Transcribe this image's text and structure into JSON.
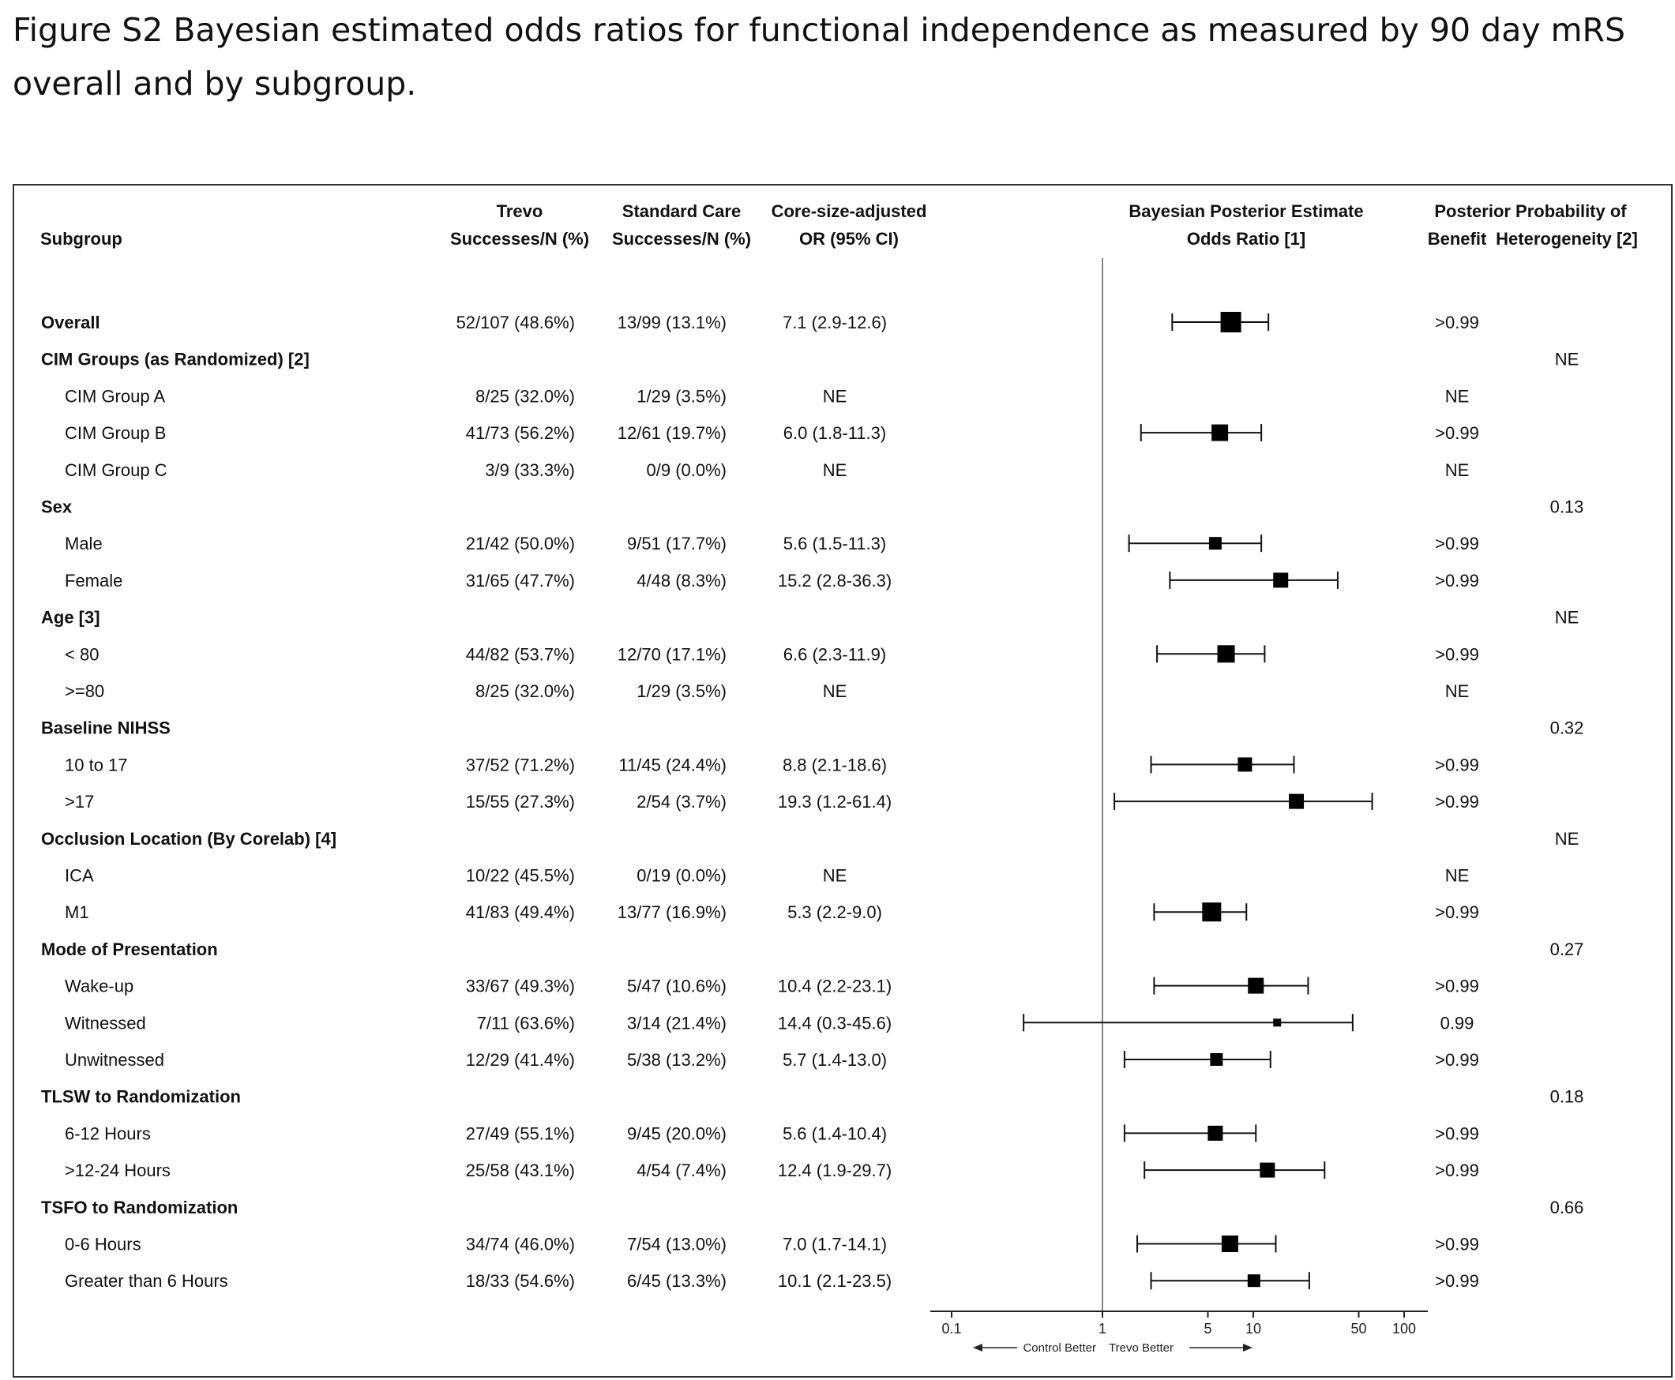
{
  "caption": "Figure S2 Bayesian estimated odds ratios for functional independence as measured by 90 day mRS overall and by subgroup.",
  "headers": {
    "subgroup": "Subgroup",
    "trevo_1": "Trevo",
    "trevo_2": "Successes/N (%)",
    "std_1": "Standard Care",
    "std_2": "Successes/N (%)",
    "or_1": "Core-size-adjusted",
    "or_2": "OR (95% CI)",
    "bayes_1": "Bayesian Posterior Estimate",
    "bayes_2": "Odds Ratio [1]",
    "post_1": "Posterior Probability of",
    "benefit": "Benefit",
    "heterogeneity": "Heterogeneity [2]"
  },
  "rows": [
    {
      "label": "Overall",
      "group": true,
      "trevo": "52/107 (48.6%)",
      "std": "13/99 (13.1%)",
      "or": "7.1 (2.9-12.6)",
      "benefit": ">0.99",
      "het": ""
    },
    {
      "label": "CIM Groups (as Randomized) [2]",
      "group": true,
      "trevo": "",
      "std": "",
      "or": "",
      "benefit": "",
      "het": "NE"
    },
    {
      "label": "CIM Group A",
      "group": false,
      "trevo": "8/25 (32.0%)",
      "std": "1/29 (3.5%)",
      "or": "NE",
      "benefit": "NE",
      "het": ""
    },
    {
      "label": "CIM Group B",
      "group": false,
      "trevo": "41/73 (56.2%)",
      "std": "12/61 (19.7%)",
      "or": "6.0 (1.8-11.3)",
      "benefit": ">0.99",
      "het": ""
    },
    {
      "label": "CIM Group C",
      "group": false,
      "trevo": "3/9 (33.3%)",
      "std": "0/9 (0.0%)",
      "or": "NE",
      "benefit": "NE",
      "het": ""
    },
    {
      "label": "Sex",
      "group": true,
      "trevo": "",
      "std": "",
      "or": "",
      "benefit": "",
      "het": "0.13"
    },
    {
      "label": "Male",
      "group": false,
      "trevo": "21/42 (50.0%)",
      "std": "9/51 (17.7%)",
      "or": "5.6 (1.5-11.3)",
      "benefit": ">0.99",
      "het": ""
    },
    {
      "label": "Female",
      "group": false,
      "trevo": "31/65 (47.7%)",
      "std": "4/48 (8.3%)",
      "or": "15.2 (2.8-36.3)",
      "benefit": ">0.99",
      "het": ""
    },
    {
      "label": "Age [3]",
      "group": true,
      "trevo": "",
      "std": "",
      "or": "",
      "benefit": "",
      "het": "NE"
    },
    {
      "label": "< 80",
      "group": false,
      "trevo": "44/82 (53.7%)",
      "std": "12/70 (17.1%)",
      "or": "6.6 (2.3-11.9)",
      "benefit": ">0.99",
      "het": ""
    },
    {
      "label": ">=80",
      "group": false,
      "trevo": "8/25 (32.0%)",
      "std": "1/29 (3.5%)",
      "or": "NE",
      "benefit": "NE",
      "het": ""
    },
    {
      "label": "Baseline NIHSS",
      "group": true,
      "trevo": "",
      "std": "",
      "or": "",
      "benefit": "",
      "het": "0.32"
    },
    {
      "label": "10 to 17",
      "group": false,
      "trevo": "37/52 (71.2%)",
      "std": "11/45 (24.4%)",
      "or": "8.8 (2.1-18.6)",
      "benefit": ">0.99",
      "het": ""
    },
    {
      "label": ">17",
      "group": false,
      "trevo": "15/55 (27.3%)",
      "std": "2/54 (3.7%)",
      "or": "19.3 (1.2-61.4)",
      "benefit": ">0.99",
      "het": ""
    },
    {
      "label": "Occlusion Location (By Corelab) [4]",
      "group": true,
      "trevo": "",
      "std": "",
      "or": "",
      "benefit": "",
      "het": "NE"
    },
    {
      "label": "ICA",
      "group": false,
      "trevo": "10/22 (45.5%)",
      "std": "0/19 (0.0%)",
      "or": "NE",
      "benefit": "NE",
      "het": ""
    },
    {
      "label": "M1",
      "group": false,
      "trevo": "41/83 (49.4%)",
      "std": "13/77 (16.9%)",
      "or": "5.3 (2.2-9.0)",
      "benefit": ">0.99",
      "het": ""
    },
    {
      "label": "Mode of Presentation",
      "group": true,
      "trevo": "",
      "std": "",
      "or": "",
      "benefit": "",
      "het": "0.27"
    },
    {
      "label": "Wake-up",
      "group": false,
      "trevo": "33/67 (49.3%)",
      "std": "5/47 (10.6%)",
      "or": "10.4 (2.2-23.1)",
      "benefit": ">0.99",
      "het": ""
    },
    {
      "label": "Witnessed",
      "group": false,
      "trevo": "7/11 (63.6%)",
      "std": "3/14 (21.4%)",
      "or": "14.4 (0.3-45.6)",
      "benefit": "0.99",
      "het": ""
    },
    {
      "label": "Unwitnessed",
      "group": false,
      "trevo": "12/29 (41.4%)",
      "std": "5/38 (13.2%)",
      "or": "5.7 (1.4-13.0)",
      "benefit": ">0.99",
      "het": ""
    },
    {
      "label": "TLSW to Randomization",
      "group": true,
      "trevo": "",
      "std": "",
      "or": "",
      "benefit": "",
      "het": "0.18"
    },
    {
      "label": "6-12 Hours",
      "group": false,
      "trevo": "27/49 (55.1%)",
      "std": "9/45 (20.0%)",
      "or": "5.6 (1.4-10.4)",
      "benefit": ">0.99",
      "het": ""
    },
    {
      "label": ">12-24 Hours",
      "group": false,
      "trevo": "25/58 (43.1%)",
      "std": "4/54 (7.4%)",
      "or": "12.4 (1.9-29.7)",
      "benefit": ">0.99",
      "het": ""
    },
    {
      "label": "TSFO to Randomization",
      "group": true,
      "trevo": "",
      "std": "",
      "or": "",
      "benefit": "",
      "het": "0.66"
    },
    {
      "label": "0-6 Hours",
      "group": false,
      "trevo": "34/74 (46.0%)",
      "std": "7/54 (13.0%)",
      "or": "7.0 (1.7-14.1)",
      "benefit": ">0.99",
      "het": ""
    },
    {
      "label": "Greater than 6 Hours",
      "group": false,
      "trevo": "18/33 (54.6%)",
      "std": "6/45 (13.3%)",
      "or": "10.1 (2.1-23.5)",
      "benefit": ">0.99",
      "het": ""
    }
  ],
  "chart_data": {
    "type": "scatter",
    "scale": "log",
    "xlim": [
      0.1,
      100
    ],
    "reference_line": 1,
    "ticks": [
      {
        "value": 0.1,
        "label": "0.1"
      },
      {
        "value": 1,
        "label": "1"
      },
      {
        "value": 5,
        "label": "5"
      },
      {
        "value": 10,
        "label": "10"
      },
      {
        "value": 50,
        "label": "50"
      },
      {
        "value": 100,
        "label": "100"
      }
    ],
    "footer_left": "Control Better",
    "footer_right": "Trevo Better",
    "points": [
      {
        "row": 0,
        "est": 7.1,
        "lo": 2.9,
        "hi": 12.6,
        "weight": 1.0
      },
      {
        "row": 3,
        "est": 6.0,
        "lo": 1.8,
        "hi": 11.3,
        "weight": 0.75
      },
      {
        "row": 6,
        "est": 5.6,
        "lo": 1.5,
        "hi": 11.3,
        "weight": 0.5
      },
      {
        "row": 7,
        "est": 15.2,
        "lo": 2.8,
        "hi": 36.3,
        "weight": 0.65
      },
      {
        "row": 9,
        "est": 6.6,
        "lo": 2.3,
        "hi": 11.9,
        "weight": 0.8
      },
      {
        "row": 12,
        "est": 8.8,
        "lo": 2.1,
        "hi": 18.6,
        "weight": 0.6
      },
      {
        "row": 13,
        "est": 19.3,
        "lo": 1.2,
        "hi": 61.4,
        "weight": 0.65
      },
      {
        "row": 16,
        "est": 5.3,
        "lo": 2.2,
        "hi": 9.0,
        "weight": 0.9
      },
      {
        "row": 18,
        "est": 10.4,
        "lo": 2.2,
        "hi": 23.1,
        "weight": 0.7
      },
      {
        "row": 19,
        "est": 14.4,
        "lo": 0.3,
        "hi": 45.6,
        "weight": 0.2
      },
      {
        "row": 20,
        "est": 5.7,
        "lo": 1.4,
        "hi": 13.0,
        "weight": 0.5
      },
      {
        "row": 22,
        "est": 5.6,
        "lo": 1.4,
        "hi": 10.4,
        "weight": 0.65
      },
      {
        "row": 23,
        "est": 12.4,
        "lo": 1.9,
        "hi": 29.7,
        "weight": 0.65
      },
      {
        "row": 25,
        "est": 7.0,
        "lo": 1.7,
        "hi": 14.1,
        "weight": 0.75
      },
      {
        "row": 26,
        "est": 10.1,
        "lo": 2.1,
        "hi": 23.5,
        "weight": 0.5
      }
    ]
  }
}
